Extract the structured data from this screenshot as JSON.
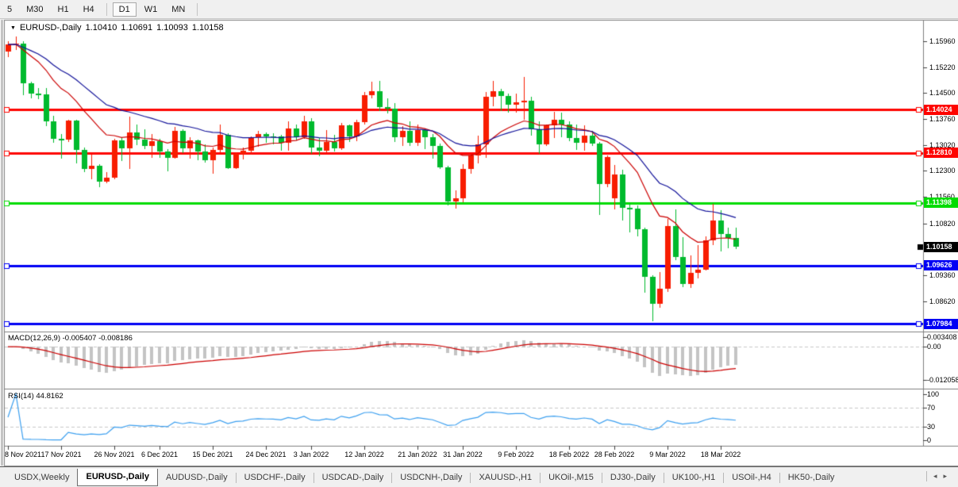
{
  "toolbar": {
    "timeframes": [
      {
        "label": "5",
        "active": false
      },
      {
        "label": "M30",
        "active": false
      },
      {
        "label": "H1",
        "active": false
      },
      {
        "label": "H4",
        "active": false
      },
      {
        "label": "D1",
        "active": true
      },
      {
        "label": "W1",
        "active": false
      },
      {
        "label": "MN",
        "active": false
      }
    ]
  },
  "title": {
    "marker": "▼",
    "name": "EURUSD-,Daily",
    "open": "1.10410",
    "high": "1.10691",
    "low": "1.10093",
    "close": "1.10158"
  },
  "indicators": {
    "macd_label": "MACD(12,26,9)",
    "macd_main": "-0.005407",
    "macd_signal": "-0.008186",
    "rsi_label": "RSI(14)",
    "rsi_value": "44.8162"
  },
  "chart_data": {
    "type": "candlestick",
    "symbol": "EURUSD-",
    "timeframe": "Daily",
    "last_ohlc": {
      "open": 1.1041,
      "high": 1.10691,
      "low": 1.10093,
      "close": 1.10158
    },
    "ylim": [
      1.07786,
      1.16543
    ],
    "candle_up_color": "#f81d00",
    "candle_down_color": "#00ba2d",
    "ohlc": [
      [
        1.1566,
        1.1595,
        1.1551,
        1.1587
      ],
      [
        1.1587,
        1.1609,
        1.157,
        1.159
      ],
      [
        1.159,
        1.1596,
        1.1443,
        1.1478
      ],
      [
        1.1478,
        1.1482,
        1.1435,
        1.1448
      ],
      [
        1.1448,
        1.1463,
        1.1432,
        1.1445
      ],
      [
        1.1445,
        1.1464,
        1.1356,
        1.1369
      ],
      [
        1.1369,
        1.1386,
        1.131,
        1.132
      ],
      [
        1.132,
        1.1333,
        1.1263,
        1.1319
      ],
      [
        1.1319,
        1.1374,
        1.1312,
        1.1372
      ],
      [
        1.1372,
        1.1374,
        1.125,
        1.1289
      ],
      [
        1.1289,
        1.1296,
        1.1226,
        1.1236
      ],
      [
        1.1236,
        1.1275,
        1.1205,
        1.1245
      ],
      [
        1.1245,
        1.125,
        1.1186,
        1.12
      ],
      [
        1.12,
        1.1227,
        1.1196,
        1.121
      ],
      [
        1.121,
        1.132,
        1.1206,
        1.1316
      ],
      [
        1.1316,
        1.1325,
        1.1258,
        1.1294
      ],
      [
        1.1294,
        1.1383,
        1.1235,
        1.1338
      ],
      [
        1.1338,
        1.136,
        1.1302,
        1.1319
      ],
      [
        1.1319,
        1.1348,
        1.1293,
        1.13
      ],
      [
        1.13,
        1.1334,
        1.1266,
        1.1313
      ],
      [
        1.1313,
        1.132,
        1.1267,
        1.1285
      ],
      [
        1.1285,
        1.1291,
        1.1228,
        1.1267
      ],
      [
        1.1267,
        1.1354,
        1.1264,
        1.1343
      ],
      [
        1.1343,
        1.1348,
        1.128,
        1.1294
      ],
      [
        1.1294,
        1.1324,
        1.1264,
        1.1316
      ],
      [
        1.1316,
        1.1319,
        1.126,
        1.1285
      ],
      [
        1.1285,
        1.1304,
        1.1253,
        1.126
      ],
      [
        1.126,
        1.1297,
        1.1222,
        1.129
      ],
      [
        1.129,
        1.136,
        1.128,
        1.1331
      ],
      [
        1.1331,
        1.1336,
        1.1236,
        1.1238
      ],
      [
        1.1238,
        1.1282,
        1.1234,
        1.1278
      ],
      [
        1.1278,
        1.1295,
        1.1262,
        1.1287
      ],
      [
        1.1287,
        1.1328,
        1.1276,
        1.1324
      ],
      [
        1.1324,
        1.1344,
        1.13,
        1.1333
      ],
      [
        1.1333,
        1.1338,
        1.1308,
        1.1328
      ],
      [
        1.1328,
        1.1336,
        1.1304,
        1.1327
      ],
      [
        1.1327,
        1.1331,
        1.1287,
        1.131
      ],
      [
        1.131,
        1.1369,
        1.1286,
        1.1349
      ],
      [
        1.1349,
        1.136,
        1.1316,
        1.1325
      ],
      [
        1.1325,
        1.1386,
        1.1321,
        1.137
      ],
      [
        1.137,
        1.1379,
        1.1279,
        1.1297
      ],
      [
        1.1297,
        1.1323,
        1.1272,
        1.1288
      ],
      [
        1.1288,
        1.1346,
        1.1284,
        1.1312
      ],
      [
        1.1312,
        1.1332,
        1.1285,
        1.1294
      ],
      [
        1.1294,
        1.1366,
        1.129,
        1.1359
      ],
      [
        1.1359,
        1.1362,
        1.1313,
        1.1328
      ],
      [
        1.1328,
        1.1374,
        1.1314,
        1.1367
      ],
      [
        1.1367,
        1.1453,
        1.1362,
        1.1444
      ],
      [
        1.1444,
        1.1482,
        1.1435,
        1.1455
      ],
      [
        1.1455,
        1.1483,
        1.1398,
        1.1411
      ],
      [
        1.1411,
        1.1435,
        1.1392,
        1.1406
      ],
      [
        1.1406,
        1.1422,
        1.1313,
        1.1326
      ],
      [
        1.1326,
        1.1357,
        1.1302,
        1.1343
      ],
      [
        1.1343,
        1.1369,
        1.13,
        1.131
      ],
      [
        1.131,
        1.136,
        1.13,
        1.1345
      ],
      [
        1.1345,
        1.1349,
        1.1291,
        1.1325
      ],
      [
        1.1325,
        1.1334,
        1.1264,
        1.1301
      ],
      [
        1.1301,
        1.1307,
        1.1235,
        1.124
      ],
      [
        1.124,
        1.1244,
        1.1131,
        1.1144
      ],
      [
        1.1144,
        1.1174,
        1.1122,
        1.1152
      ],
      [
        1.1152,
        1.1248,
        1.1141,
        1.1235
      ],
      [
        1.1235,
        1.1279,
        1.1222,
        1.1273
      ],
      [
        1.1273,
        1.133,
        1.1251,
        1.1305
      ],
      [
        1.1305,
        1.1452,
        1.1266,
        1.1439
      ],
      [
        1.1439,
        1.1483,
        1.1412,
        1.1454
      ],
      [
        1.1454,
        1.1462,
        1.14,
        1.1442
      ],
      [
        1.1442,
        1.1449,
        1.1396,
        1.1417
      ],
      [
        1.1417,
        1.1448,
        1.1395,
        1.1424
      ],
      [
        1.1424,
        1.1495,
        1.1375,
        1.1428
      ],
      [
        1.1428,
        1.144,
        1.133,
        1.1348
      ],
      [
        1.1348,
        1.1369,
        1.1278,
        1.1306
      ],
      [
        1.1306,
        1.1362,
        1.1301,
        1.1359
      ],
      [
        1.1359,
        1.1396,
        1.1322,
        1.1374
      ],
      [
        1.1374,
        1.1394,
        1.1324,
        1.136
      ],
      [
        1.136,
        1.137,
        1.1313,
        1.1323
      ],
      [
        1.1323,
        1.136,
        1.1288,
        1.1309
      ],
      [
        1.1309,
        1.1359,
        1.1287,
        1.133
      ],
      [
        1.133,
        1.1342,
        1.1299,
        1.1307
      ],
      [
        1.1307,
        1.1311,
        1.1106,
        1.1193
      ],
      [
        1.1193,
        1.1274,
        1.1184,
        1.127
      ],
      [
        1.1152,
        1.1246,
        1.1121,
        1.1219
      ],
      [
        1.1219,
        1.1234,
        1.109,
        1.1125
      ],
      [
        1.1125,
        1.114,
        1.1058,
        1.1124
      ],
      [
        1.1124,
        1.1133,
        1.1045,
        1.1065
      ],
      [
        1.1065,
        1.107,
        1.0886,
        1.093
      ],
      [
        1.093,
        1.0935,
        1.0806,
        1.0854
      ],
      [
        1.0854,
        1.0945,
        1.0845,
        1.0898
      ],
      [
        1.0898,
        1.1095,
        1.089,
        1.1075
      ],
      [
        1.1075,
        1.1121,
        1.0978,
        1.0987
      ],
      [
        1.0987,
        1.1043,
        1.0901,
        1.0911
      ],
      [
        1.0911,
        1.0992,
        1.0901,
        1.0941
      ],
      [
        1.0941,
        1.102,
        1.0925,
        1.0952
      ],
      [
        1.0952,
        1.1046,
        1.095,
        1.1035
      ],
      [
        1.1035,
        1.1137,
        1.102,
        1.1091
      ],
      [
        1.1091,
        1.1119,
        1.1003,
        1.1051
      ],
      [
        1.1051,
        1.1069,
        1.101,
        1.1041
      ],
      [
        1.1041,
        1.10691,
        1.10093,
        1.10158
      ]
    ],
    "x_ticks": [
      {
        "index": 0,
        "label": "8 Nov 2021"
      },
      {
        "index": 7,
        "label": "17 Nov 2021"
      },
      {
        "index": 14,
        "label": "26 Nov 2021"
      },
      {
        "index": 20,
        "label": "6 Dec 2021"
      },
      {
        "index": 27,
        "label": "15 Dec 2021"
      },
      {
        "index": 34,
        "label": "24 Dec 2021"
      },
      {
        "index": 40,
        "label": "3 Jan 2022"
      },
      {
        "index": 47,
        "label": "12 Jan 2022"
      },
      {
        "index": 54,
        "label": "21 Jan 2022"
      },
      {
        "index": 60,
        "label": "31 Jan 2022"
      },
      {
        "index": 67,
        "label": "9 Feb 2022"
      },
      {
        "index": 74,
        "label": "18 Feb 2022"
      },
      {
        "index": 80,
        "label": "28 Feb 2022"
      },
      {
        "index": 87,
        "label": "9 Mar 2022"
      },
      {
        "index": 94,
        "label": "18 Mar 2022"
      }
    ],
    "y_axis_labels": [
      "1.15960",
      "1.15220",
      "1.14500",
      "1.13760",
      "1.13020",
      "1.12300",
      "1.11560",
      "1.10820",
      "1.09360",
      "1.08620"
    ],
    "hlines": [
      {
        "price": 1.14024,
        "color": "#fe0400",
        "label": "1.14024"
      },
      {
        "price": 1.1281,
        "color": "#fe0400",
        "label": "1.12810"
      },
      {
        "price": 1.11398,
        "color": "#00dc00",
        "label": "1.11398"
      },
      {
        "price": 1.09626,
        "color": "#0000f4",
        "label": "1.09626"
      },
      {
        "price": 1.07984,
        "color": "#0000f4",
        "label": "1.07984"
      }
    ],
    "current_price": {
      "value": 1.10158,
      "label": "1.10158",
      "badge_color": "#000000"
    },
    "moving_averages": [
      {
        "period": 13,
        "color": "#cc0000"
      },
      {
        "period": 26,
        "color": "#12129a"
      }
    ],
    "macd": {
      "params": [
        12,
        26,
        9
      ],
      "bar_color": "#c4c4c4",
      "signal_color": "#cc0000",
      "ylim": [
        -0.0149,
        0.0052
      ],
      "axis_labels": [
        {
          "value": 0.003408,
          "label": "0.003408"
        },
        {
          "value": 0,
          "label": "0.00"
        },
        {
          "value": -0.012058,
          "label": "-0.012058"
        }
      ]
    },
    "rsi": {
      "period": 14,
      "color": "#3da0f0",
      "ylim": [
        -10,
        110
      ],
      "levels": [
        70,
        30
      ],
      "axis_labels": [
        {
          "value": 100,
          "label": "100"
        },
        {
          "value": 70,
          "label": "70"
        },
        {
          "value": 30,
          "label": "30"
        },
        {
          "value": 0,
          "label": "0"
        }
      ]
    }
  },
  "tabs": {
    "items": [
      {
        "label": "USDX,Weekly",
        "active": false
      },
      {
        "label": "EURUSD-,Daily",
        "active": true
      },
      {
        "label": "AUDUSD-,Daily",
        "active": false
      },
      {
        "label": "USDCHF-,Daily",
        "active": false
      },
      {
        "label": "USDCAD-,Daily",
        "active": false
      },
      {
        "label": "USDCNH-,Daily",
        "active": false
      },
      {
        "label": "XAUUSD-,H1",
        "active": false
      },
      {
        "label": "UKOil-,M15",
        "active": false
      },
      {
        "label": "DJ30-,Daily",
        "active": false
      },
      {
        "label": "UK100-,H1",
        "active": false
      },
      {
        "label": "USOil-,H4",
        "active": false
      },
      {
        "label": "HK50-,Daily",
        "active": false
      }
    ],
    "scroll_left": "◂",
    "scroll_right": "▸"
  }
}
